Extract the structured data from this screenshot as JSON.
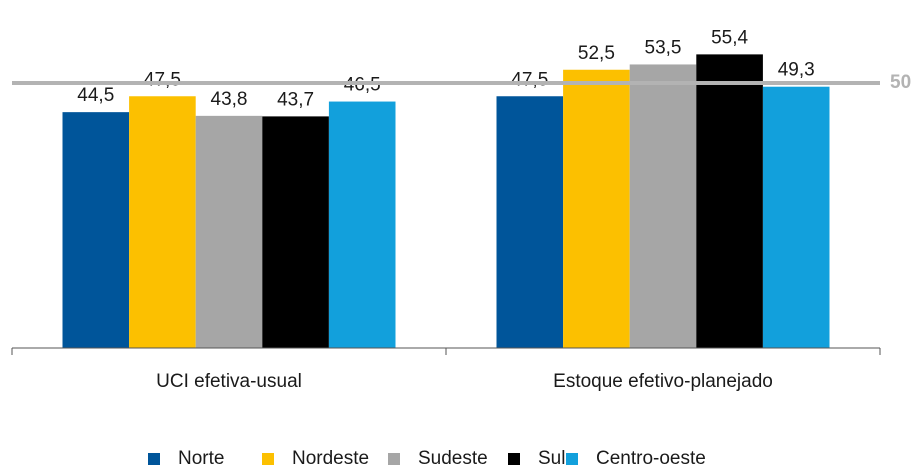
{
  "chart_data": {
    "type": "bar",
    "categories": [
      "UCI efetiva-usual",
      "Estoque efetivo-planejado"
    ],
    "series": [
      {
        "name": "Norte",
        "color": "#00559a",
        "values": [
          44.5,
          47.5
        ],
        "value_labels": [
          "44,5",
          "47,5"
        ]
      },
      {
        "name": "Nordeste",
        "color": "#fcc000",
        "values": [
          47.5,
          52.5
        ],
        "value_labels": [
          "47,5",
          "52,5"
        ]
      },
      {
        "name": "Sudeste",
        "color": "#a6a6a6",
        "values": [
          43.8,
          53.5
        ],
        "value_labels": [
          "43,8",
          "53,5"
        ]
      },
      {
        "name": "Sul",
        "color": "#000000",
        "values": [
          43.7,
          55.4
        ],
        "value_labels": [
          "43,7",
          "55,4"
        ]
      },
      {
        "name": "Centro-oeste",
        "color": "#12a0dc",
        "values": [
          46.5,
          49.3
        ],
        "value_labels": [
          "46,5",
          "49,3"
        ]
      }
    ],
    "reference_line": {
      "value": 50,
      "color": "#b3b3b3"
    },
    "ylim": [
      0,
      60
    ],
    "legend": "bottom"
  }
}
